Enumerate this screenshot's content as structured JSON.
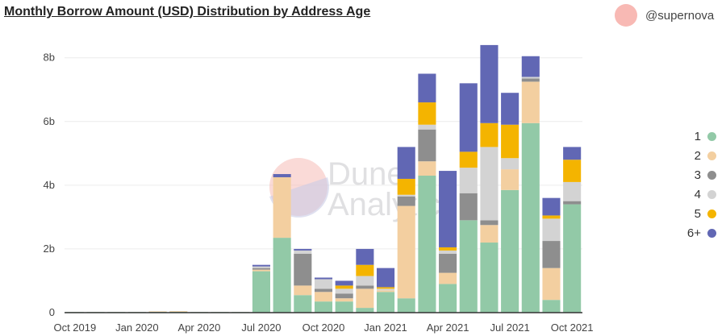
{
  "header": {
    "title": "Monthly Borrow Amount (USD) Distribution by Address Age",
    "author": "@supernova"
  },
  "watermark": {
    "line1": "Dune",
    "line2": "Analytics"
  },
  "colors": {
    "1": "#92c9a7",
    "2": "#f3cfa0",
    "3": "#8e8e8e",
    "4": "#d3d3d3",
    "5": "#f4b400",
    "6+": "#6167b4",
    "avatar": "#f8b9b4"
  },
  "chart_data": {
    "type": "bar",
    "stacked": true,
    "title": "Monthly Borrow Amount (USD) Distribution by Address Age",
    "y_unit": "billion USD",
    "ylim": [
      0,
      8.6
    ],
    "y_ticks": [
      0,
      2,
      4,
      6,
      8
    ],
    "y_tick_labels": [
      "0",
      "2b",
      "4b",
      "6b",
      "8b"
    ],
    "x_tick_labels": [
      {
        "label": "Oct 2019",
        "category": "2019-10"
      },
      {
        "label": "Jan 2020",
        "category": "2020-01"
      },
      {
        "label": "Apr 2020",
        "category": "2020-04"
      },
      {
        "label": "Jul 2020",
        "category": "2020-07"
      },
      {
        "label": "Oct 2020",
        "category": "2020-10"
      },
      {
        "label": "Jan 2021",
        "category": "2021-01"
      },
      {
        "label": "Apr 2021",
        "category": "2021-04"
      },
      {
        "label": "Jul 2021",
        "category": "2021-07"
      },
      {
        "label": "Oct 2021",
        "category": "2021-10"
      }
    ],
    "categories": [
      "2019-10",
      "2019-11",
      "2019-12",
      "2020-01",
      "2020-02",
      "2020-03",
      "2020-04",
      "2020-05",
      "2020-06",
      "2020-07",
      "2020-08",
      "2020-09",
      "2020-10",
      "2020-11",
      "2020-12",
      "2021-01",
      "2021-02",
      "2021-03",
      "2021-04",
      "2021-05",
      "2021-06",
      "2021-07",
      "2021-08",
      "2021-09",
      "2021-10"
    ],
    "series": [
      {
        "name": "1",
        "values": [
          0.02,
          0.02,
          0.02,
          0.02,
          0.03,
          0.03,
          0.02,
          0.02,
          0.02,
          1.3,
          2.35,
          0.55,
          0.35,
          0.35,
          0.15,
          0.65,
          0.45,
          4.3,
          0.9,
          2.9,
          2.2,
          3.85,
          5.95,
          0.4,
          3.4
        ]
      },
      {
        "name": "2",
        "values": [
          0.0,
          0.0,
          0.0,
          0.0,
          0.01,
          0.02,
          0.0,
          0.0,
          0.0,
          0.05,
          1.9,
          0.3,
          0.3,
          0.1,
          0.6,
          0.05,
          2.9,
          0.45,
          0.35,
          0.0,
          0.55,
          0.65,
          1.3,
          1.0,
          0.0
        ]
      },
      {
        "name": "3",
        "values": [
          0.0,
          0.0,
          0.0,
          0.0,
          0.0,
          0.0,
          0.0,
          0.0,
          0.0,
          0.05,
          0.0,
          1.0,
          0.1,
          0.15,
          0.1,
          0.0,
          0.3,
          1.0,
          0.6,
          0.85,
          0.15,
          0.0,
          0.1,
          0.85,
          0.1
        ]
      },
      {
        "name": "4",
        "values": [
          0.0,
          0.0,
          0.0,
          0.0,
          0.0,
          0.0,
          0.0,
          0.0,
          0.0,
          0.05,
          0.0,
          0.1,
          0.3,
          0.15,
          0.3,
          0.05,
          0.05,
          0.15,
          0.1,
          0.8,
          2.3,
          0.35,
          0.05,
          0.7,
          0.6
        ]
      },
      {
        "name": "5",
        "values": [
          0.0,
          0.0,
          0.0,
          0.0,
          0.0,
          0.0,
          0.0,
          0.0,
          0.0,
          0.0,
          0.0,
          0.0,
          0.0,
          0.1,
          0.35,
          0.05,
          0.5,
          0.7,
          0.1,
          0.5,
          0.75,
          1.05,
          0.0,
          0.1,
          0.7
        ]
      },
      {
        "name": "6+",
        "values": [
          0.0,
          0.0,
          0.0,
          0.0,
          0.0,
          0.0,
          0.0,
          0.0,
          0.0,
          0.05,
          0.1,
          0.05,
          0.05,
          0.15,
          0.5,
          0.6,
          1.0,
          0.9,
          2.4,
          2.15,
          2.45,
          1.0,
          0.65,
          0.55,
          0.4
        ]
      }
    ],
    "legend": [
      "1",
      "2",
      "3",
      "4",
      "5",
      "6+"
    ],
    "legend_position": "right",
    "grid": true
  }
}
